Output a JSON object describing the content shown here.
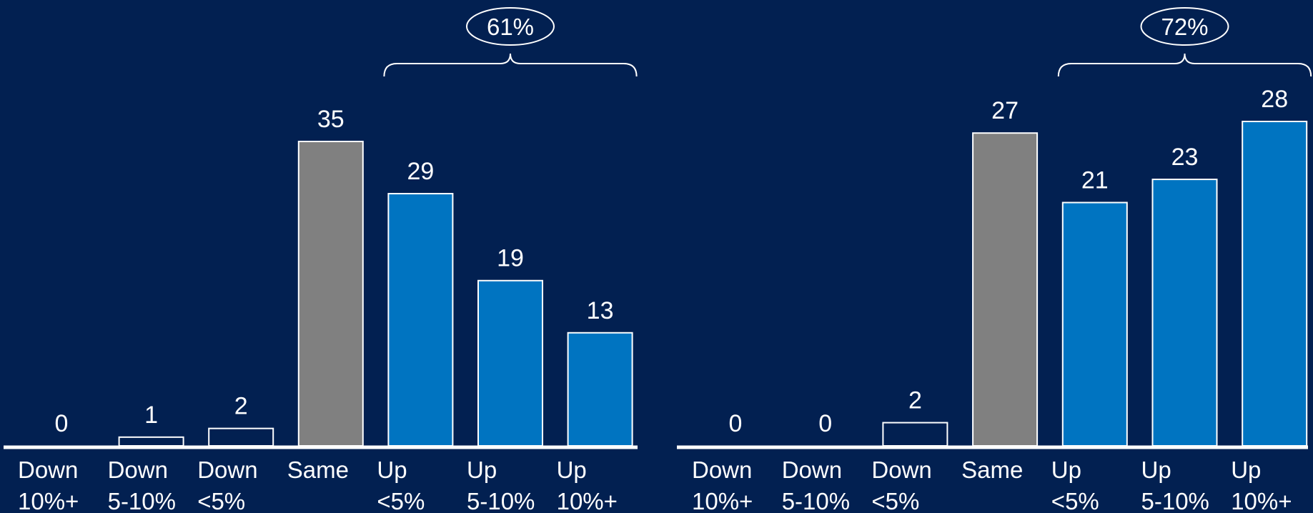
{
  "colors": {
    "background": "#022051",
    "bar_down_outline": "#ffffff",
    "bar_down_fill": "#022051",
    "bar_same": "#808080",
    "bar_up": "#0074C1",
    "text": "#ffffff"
  },
  "chart_data": [
    {
      "type": "bar",
      "categories": [
        [
          "Down",
          "10%+"
        ],
        [
          "Down",
          "5-10%"
        ],
        [
          "Down",
          "<5%"
        ],
        [
          "Same",
          ""
        ],
        [
          "Up",
          "<5%"
        ],
        [
          "Up",
          "5-10%"
        ],
        [
          "Up",
          "10%+"
        ]
      ],
      "values": [
        0,
        1,
        2,
        35,
        29,
        19,
        13
      ],
      "bar_groups": [
        "down",
        "down",
        "down",
        "same",
        "up",
        "up",
        "up"
      ],
      "callout": {
        "label": "61%",
        "spans_categories": [
          4,
          6
        ]
      },
      "ylim": [
        0,
        35
      ],
      "grid": false,
      "title": "",
      "xlabel": "",
      "ylabel": ""
    },
    {
      "type": "bar",
      "categories": [
        [
          "Down",
          "10%+"
        ],
        [
          "Down",
          "5-10%"
        ],
        [
          "Down",
          "<5%"
        ],
        [
          "Same",
          ""
        ],
        [
          "Up",
          "<5%"
        ],
        [
          "Up",
          "5-10%"
        ],
        [
          "Up",
          "10%+"
        ]
      ],
      "values": [
        0,
        0,
        2,
        27,
        21,
        23,
        28
      ],
      "bar_groups": [
        "down",
        "down",
        "down",
        "same",
        "up",
        "up",
        "up"
      ],
      "callout": {
        "label": "72%",
        "spans_categories": [
          4,
          6
        ]
      },
      "ylim": [
        0,
        28
      ],
      "grid": false,
      "title": "",
      "xlabel": "",
      "ylabel": ""
    }
  ]
}
